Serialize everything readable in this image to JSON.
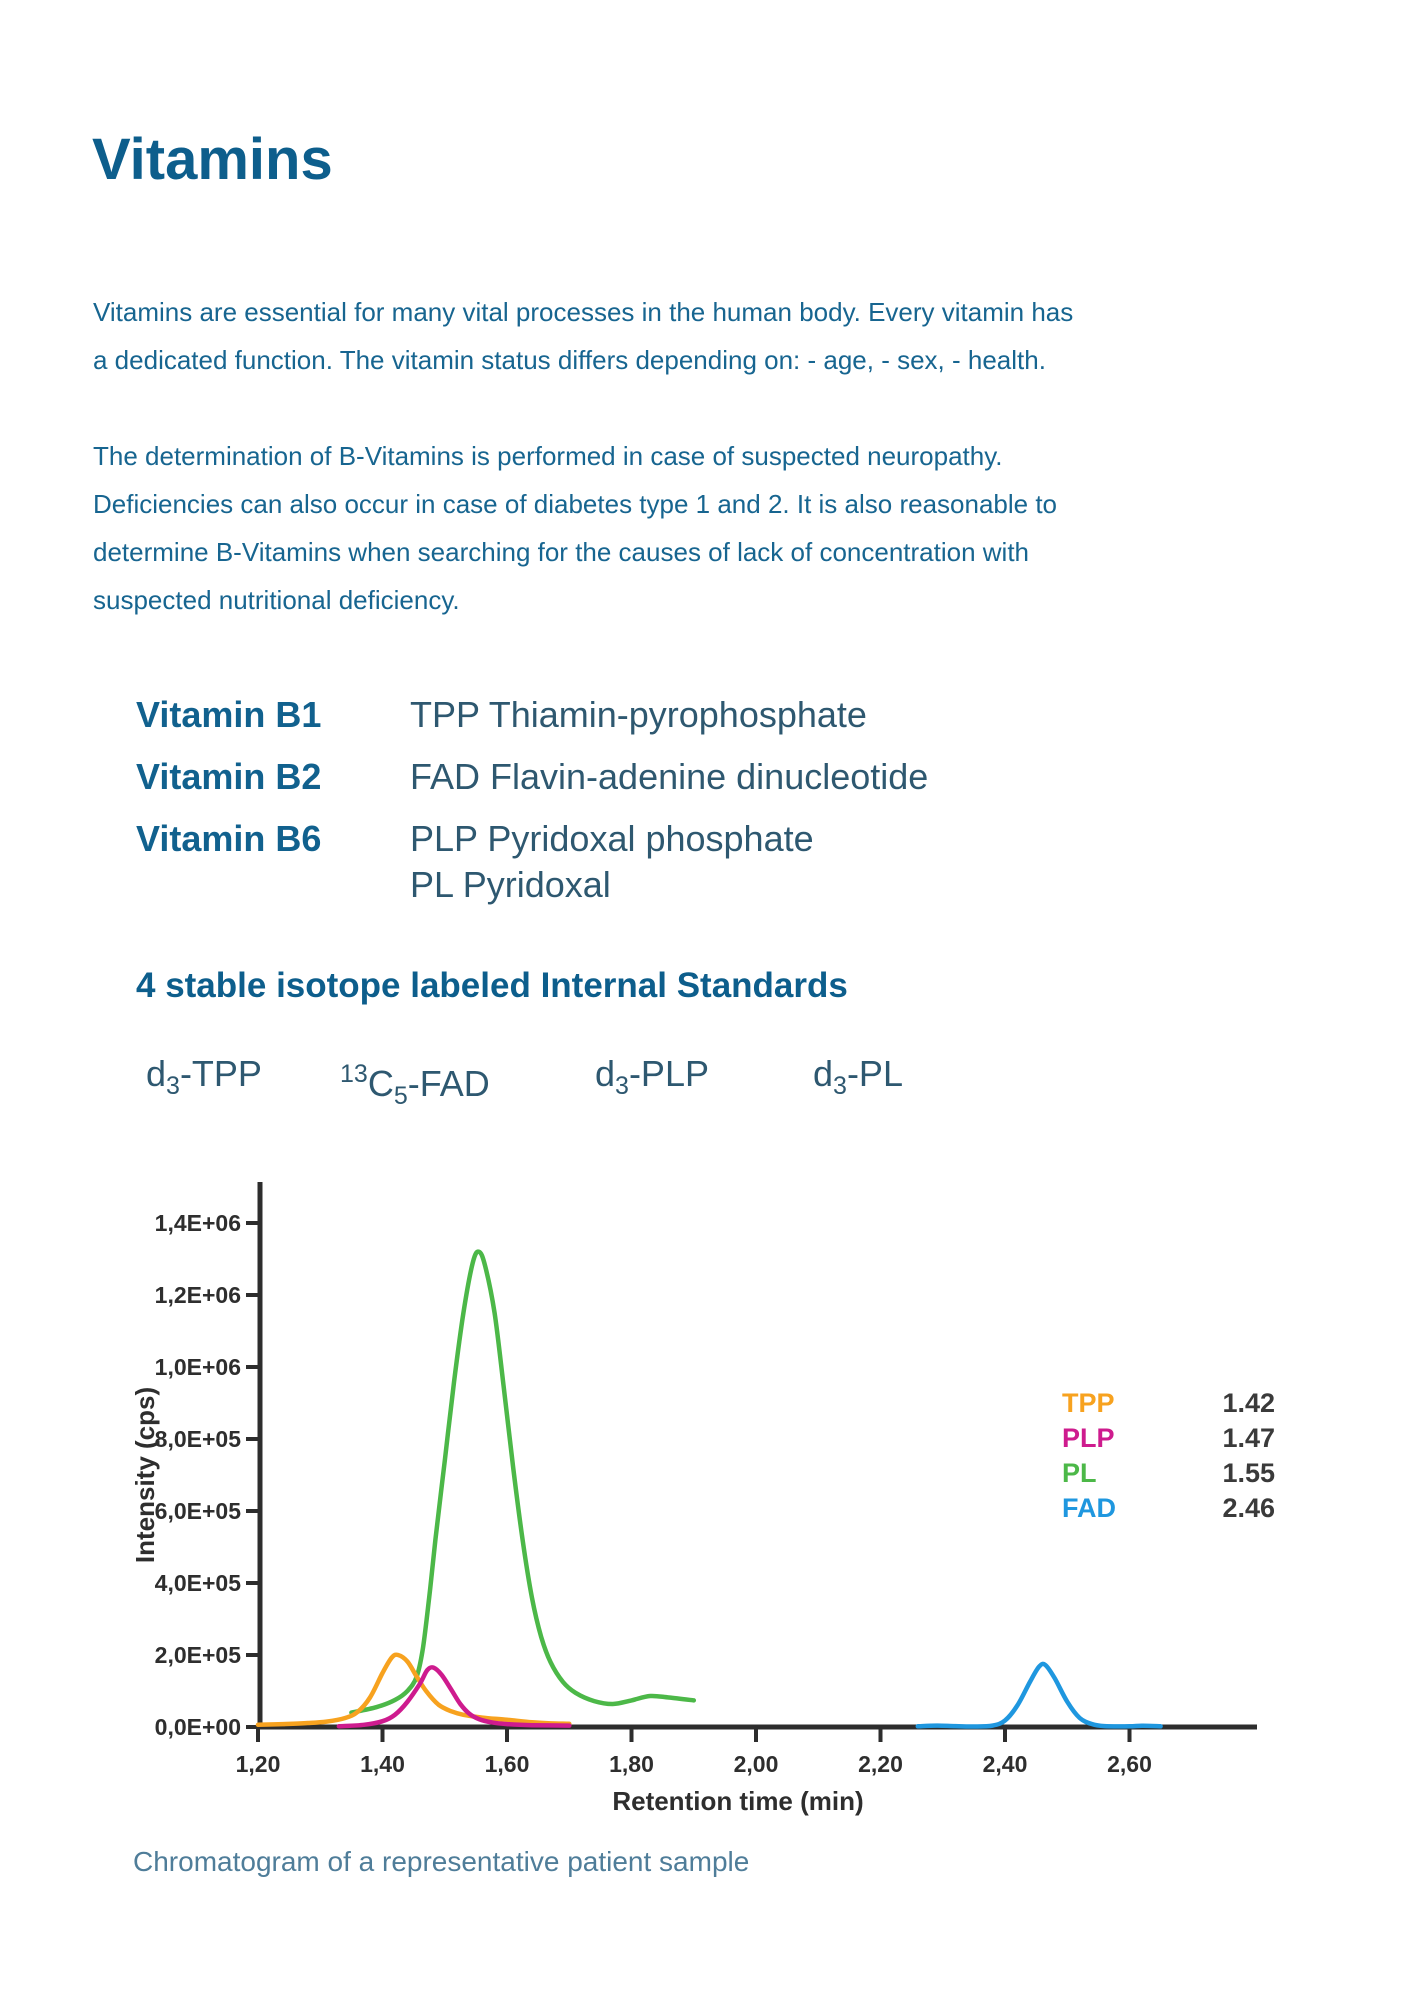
{
  "page": {
    "title": "Vitamins",
    "intro_paragraph": "Vitamins are essential for many vital processes in the human body. Every vitamin has\na dedicated function. The vitamin status differs depending on: - age, - sex, - health.",
    "determination_paragraph": "The determination of B-Vitamins is performed in case of suspected neuropathy.\nDeficiencies can also occur in case of diabetes type 1 and 2. It is also reasonable to\ndetermine B-Vitamins when searching for the causes of lack of concentration with\nsuspected nutritional deficiency.",
    "caption": "Chromatogram of a representative patient sample"
  },
  "colors": {
    "title_blue": "#0D5E8C",
    "body_blue": "#176590",
    "label_blue": "#11618E",
    "slate_text": "#2E5870",
    "caption_blue": "#4F7D99",
    "axis_dark": "#2D2D2D",
    "tick_text": "#2E2E2E",
    "legend_value_text": "#3A3A3A",
    "tpp_orange": "#F7A21F",
    "plp_magenta": "#CE1B8E",
    "pl_green": "#4CB848",
    "fad_blue": "#1F97DF"
  },
  "vitamins": [
    {
      "label": "Vitamin B1",
      "compounds": "TPP Thiamin-pyrophosphate"
    },
    {
      "label": "Vitamin B2",
      "compounds": "FAD Flavin-adenine dinucleotide"
    },
    {
      "label": "Vitamin B6",
      "compounds": "PLP Pyridoxal phosphate\nPL Pyridoxal"
    }
  ],
  "internal_standards": {
    "heading": "4 stable isotope labeled Internal Standards",
    "items": [
      {
        "name": "d3-TPP",
        "segments": [
          {
            "text": "d"
          },
          {
            "text": "3",
            "script": "sub"
          },
          {
            "text": "-TPP"
          }
        ]
      },
      {
        "name": "13C5-FAD",
        "segments": [
          {
            "text": "13",
            "script": "sup"
          },
          {
            "text": "C"
          },
          {
            "text": "5",
            "script": "sub"
          },
          {
            "text": "-FAD"
          }
        ]
      },
      {
        "name": "d3-PLP",
        "segments": [
          {
            "text": "d"
          },
          {
            "text": "3",
            "script": "sub"
          },
          {
            "text": "-PLP"
          }
        ]
      },
      {
        "name": "d3-PL",
        "segments": [
          {
            "text": "d"
          },
          {
            "text": "3",
            "script": "sub"
          },
          {
            "text": "-PL"
          }
        ]
      }
    ]
  },
  "chart_data": {
    "type": "line",
    "title": "",
    "xlabel": "Retention time (min)",
    "ylabel": "Intensity (cps)",
    "xlim": [
      1.2,
      2.8
    ],
    "ylim": [
      0,
      1500000
    ],
    "grid": false,
    "x_ticks": {
      "values": [
        1.2,
        1.4,
        1.6,
        1.8,
        2.0,
        2.2,
        2.4,
        2.6
      ],
      "labels": [
        "1,20",
        "1,40",
        "1,60",
        "1,80",
        "2,00",
        "2,20",
        "2,40",
        "2,60"
      ]
    },
    "y_ticks": {
      "values": [
        0,
        200000,
        400000,
        600000,
        800000,
        1000000,
        1200000,
        1400000
      ],
      "labels": [
        "0,0E+00",
        "2,0E+05",
        "4,0E+05",
        "6,0E+05",
        "8,0E+05",
        "1,0E+06",
        "1,2E+06",
        "1,4E+06"
      ]
    },
    "legend": {
      "position": "upper-right",
      "entries": [
        {
          "name": "TPP",
          "retention_time": "1.42",
          "color": "#F7A21F"
        },
        {
          "name": "PLP",
          "retention_time": "1.47",
          "color": "#CE1B8E"
        },
        {
          "name": "PL",
          "retention_time": "1.55",
          "color": "#4CB848"
        },
        {
          "name": "FAD",
          "retention_time": "2.46",
          "color": "#1F97DF"
        }
      ]
    },
    "series": [
      {
        "name": "TPP",
        "color": "#F7A21F",
        "draw_order": 2,
        "peak_retention_min": 1.42,
        "peak_intensity_cps": 200000,
        "points": [
          [
            1.2,
            6000
          ],
          [
            1.24,
            8000
          ],
          [
            1.28,
            11000
          ],
          [
            1.31,
            15000
          ],
          [
            1.34,
            25000
          ],
          [
            1.36,
            42000
          ],
          [
            1.38,
            82000
          ],
          [
            1.4,
            150000
          ],
          [
            1.415,
            193000
          ],
          [
            1.425,
            200000
          ],
          [
            1.44,
            182000
          ],
          [
            1.455,
            140000
          ],
          [
            1.47,
            100000
          ],
          [
            1.49,
            62000
          ],
          [
            1.51,
            44000
          ],
          [
            1.53,
            34000
          ],
          [
            1.56,
            26000
          ],
          [
            1.6,
            20000
          ],
          [
            1.64,
            13000
          ],
          [
            1.67,
            10000
          ],
          [
            1.7,
            9000
          ]
        ]
      },
      {
        "name": "PLP",
        "color": "#CE1B8E",
        "draw_order": 3,
        "peak_retention_min": 1.47,
        "peak_intensity_cps": 165000,
        "points": [
          [
            1.33,
            2000
          ],
          [
            1.37,
            6000
          ],
          [
            1.4,
            16000
          ],
          [
            1.42,
            34000
          ],
          [
            1.44,
            70000
          ],
          [
            1.46,
            120000
          ],
          [
            1.472,
            158000
          ],
          [
            1.482,
            165000
          ],
          [
            1.495,
            145000
          ],
          [
            1.51,
            105000
          ],
          [
            1.525,
            64000
          ],
          [
            1.54,
            36000
          ],
          [
            1.555,
            22000
          ],
          [
            1.575,
            13000
          ],
          [
            1.6,
            8000
          ],
          [
            1.64,
            5000
          ],
          [
            1.7,
            4000
          ]
        ]
      },
      {
        "name": "PL",
        "color": "#4CB848",
        "draw_order": 1,
        "peak_retention_min": 1.55,
        "peak_intensity_cps": 1320000,
        "points": [
          [
            1.35,
            40000
          ],
          [
            1.39,
            55000
          ],
          [
            1.42,
            75000
          ],
          [
            1.44,
            100000
          ],
          [
            1.455,
            140000
          ],
          [
            1.465,
            220000
          ],
          [
            1.475,
            360000
          ],
          [
            1.485,
            520000
          ],
          [
            1.5,
            740000
          ],
          [
            1.515,
            960000
          ],
          [
            1.53,
            1150000
          ],
          [
            1.545,
            1290000
          ],
          [
            1.555,
            1320000
          ],
          [
            1.565,
            1280000
          ],
          [
            1.58,
            1150000
          ],
          [
            1.595,
            940000
          ],
          [
            1.61,
            720000
          ],
          [
            1.625,
            520000
          ],
          [
            1.64,
            360000
          ],
          [
            1.655,
            250000
          ],
          [
            1.67,
            180000
          ],
          [
            1.69,
            125000
          ],
          [
            1.71,
            95000
          ],
          [
            1.74,
            72000
          ],
          [
            1.77,
            64000
          ],
          [
            1.8,
            74000
          ],
          [
            1.83,
            86000
          ],
          [
            1.86,
            82000
          ],
          [
            1.9,
            74000
          ]
        ]
      },
      {
        "name": "FAD",
        "color": "#1F97DF",
        "draw_order": 4,
        "peak_retention_min": 2.46,
        "peak_intensity_cps": 172000,
        "points": [
          [
            2.26,
            2000
          ],
          [
            2.29,
            4000
          ],
          [
            2.32,
            2500
          ],
          [
            2.35,
            1500
          ],
          [
            2.38,
            4000
          ],
          [
            2.4,
            18000
          ],
          [
            2.42,
            60000
          ],
          [
            2.44,
            125000
          ],
          [
            2.455,
            168000
          ],
          [
            2.465,
            172000
          ],
          [
            2.48,
            135000
          ],
          [
            2.5,
            70000
          ],
          [
            2.52,
            25000
          ],
          [
            2.54,
            8000
          ],
          [
            2.56,
            2500
          ],
          [
            2.6,
            2000
          ],
          [
            2.62,
            3500
          ],
          [
            2.65,
            2000
          ]
        ]
      }
    ]
  }
}
